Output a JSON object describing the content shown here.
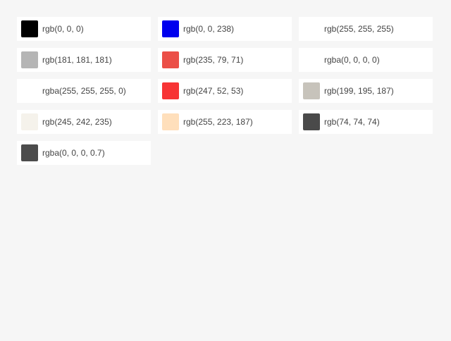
{
  "swatches": [
    {
      "label": "rgb(0, 0, 0)",
      "color": "rgb(0, 0, 0)"
    },
    {
      "label": "rgb(0, 0, 238)",
      "color": "rgb(0, 0, 238)"
    },
    {
      "label": "rgb(255, 255, 255)",
      "color": "rgb(255, 255, 255)"
    },
    {
      "label": "rgb(181, 181, 181)",
      "color": "rgb(181, 181, 181)"
    },
    {
      "label": "rgb(235, 79, 71)",
      "color": "rgb(235, 79, 71)"
    },
    {
      "label": "rgba(0, 0, 0, 0)",
      "color": "rgba(0, 0, 0, 0)"
    },
    {
      "label": "rgba(255, 255, 255, 0)",
      "color": "rgba(255, 255, 255, 0)"
    },
    {
      "label": "rgb(247, 52, 53)",
      "color": "rgb(247, 52, 53)"
    },
    {
      "label": "rgb(199, 195, 187)",
      "color": "rgb(199, 195, 187)"
    },
    {
      "label": "rgb(245, 242, 235)",
      "color": "rgb(245, 242, 235)"
    },
    {
      "label": "rgb(255, 223, 187)",
      "color": "rgb(255, 223, 187)"
    },
    {
      "label": "rgb(74, 74, 74)",
      "color": "rgb(74, 74, 74)"
    },
    {
      "label": "rgba(0, 0, 0, 0.7)",
      "color": "rgba(0, 0, 0, 0.7)"
    }
  ]
}
